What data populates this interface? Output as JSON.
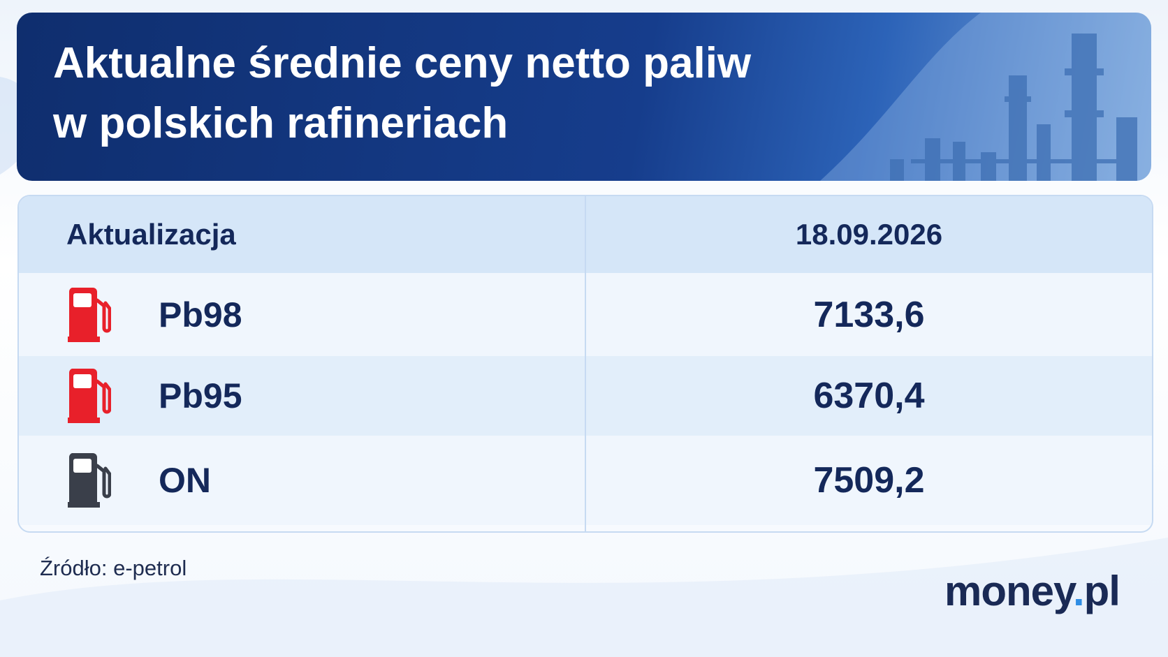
{
  "header": {
    "title_lines": [
      "Aktualne średnie ceny netto paliw",
      "w polskich rafineriach"
    ]
  },
  "table": {
    "header": [
      "Aktualizacja",
      "18.09.2026"
    ],
    "rows": [
      {
        "fuel": "Pb98",
        "price": "7133,6",
        "icon_color": "#e8202a"
      },
      {
        "fuel": "Pb95",
        "price": "6370,4",
        "icon_color": "#e8202a"
      },
      {
        "fuel": "ON",
        "price": "7509,2",
        "icon_color": "#3a3f4a"
      }
    ]
  },
  "source": "Źródło: e-petrol",
  "logo": {
    "name": "money",
    "dot": ".",
    "tld": "pl"
  }
}
